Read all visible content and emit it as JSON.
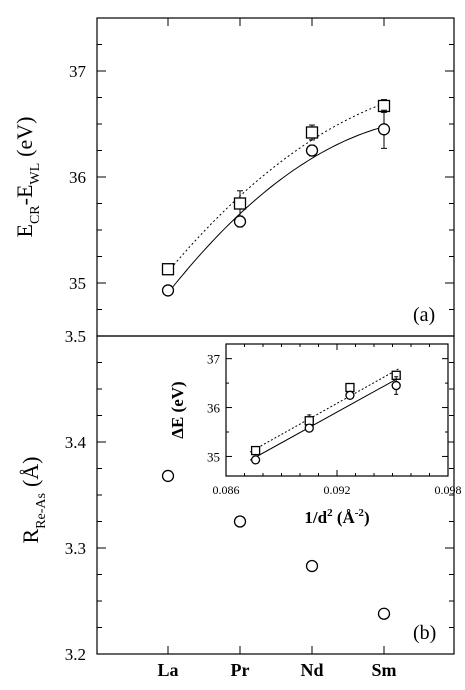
{
  "chart_data": [
    {
      "type": "scatter",
      "panel_label": "(a)",
      "ylabel_main": "E",
      "ylabel_sub1": "CR",
      "ylabel_mid": "-E",
      "ylabel_sub2": "WL",
      "ylabel_unit": "(eV)",
      "categories": [
        "La",
        "Pr",
        "Nd",
        "Sm"
      ],
      "ylim": [
        34.5,
        37.5
      ],
      "yticks": [
        "35",
        "36",
        "37"
      ],
      "series": [
        {
          "marker": "square",
          "line": "dotted",
          "x": [
            0,
            1,
            2,
            3
          ],
          "values": [
            35.13,
            35.75,
            36.42,
            36.67
          ],
          "errors": [
            0.05,
            0.12,
            0.07,
            0.06
          ]
        },
        {
          "marker": "circle",
          "line": "solid",
          "x": [
            0,
            1,
            2,
            3
          ],
          "values": [
            34.93,
            35.58,
            36.25,
            36.45
          ],
          "errors": [
            0.03,
            0.05,
            0.05,
            0.18
          ]
        }
      ]
    },
    {
      "type": "scatter",
      "panel_label": "(b)",
      "ylabel_main": "R",
      "ylabel_sub": "Re-As",
      "ylabel_unit": "(Å)",
      "categories": [
        "La",
        "Pr",
        "Nd",
        "Sm"
      ],
      "ylim": [
        3.2,
        3.5
      ],
      "yticks": [
        "3.2",
        "3.3",
        "3.4",
        "3.5"
      ],
      "series": [
        {
          "marker": "circle",
          "x": [
            0,
            1,
            2,
            3
          ],
          "values": [
            3.368,
            3.325,
            3.283,
            3.238
          ]
        }
      ]
    },
    {
      "type": "scatter",
      "inset": true,
      "ylabel": "ΔE (eV)",
      "xlabel_main": "1/d",
      "xlabel_sup": "2",
      "xlabel_unit": " (Å",
      "xlabel_unit_sup": "-2",
      "xlabel_close": ")",
      "xlim": [
        0.086,
        0.098
      ],
      "ylim": [
        34.6,
        37.3
      ],
      "xticks": [
        "0.086",
        "0.092",
        "0.098"
      ],
      "yticks": [
        "35",
        "36",
        "37"
      ],
      "series": [
        {
          "marker": "square",
          "line": "dotted",
          "x": [
            0.0876,
            0.0905,
            0.0927,
            0.0952
          ],
          "values": [
            35.12,
            35.73,
            36.41,
            36.66
          ],
          "errors": [
            0.05,
            0.12,
            0.07,
            0.06
          ]
        },
        {
          "marker": "circle",
          "line": "solid",
          "x": [
            0.0876,
            0.0905,
            0.0927,
            0.0952
          ],
          "values": [
            34.93,
            35.58,
            36.25,
            36.45
          ],
          "errors": [
            0.03,
            0.05,
            0.05,
            0.18
          ]
        }
      ]
    }
  ]
}
